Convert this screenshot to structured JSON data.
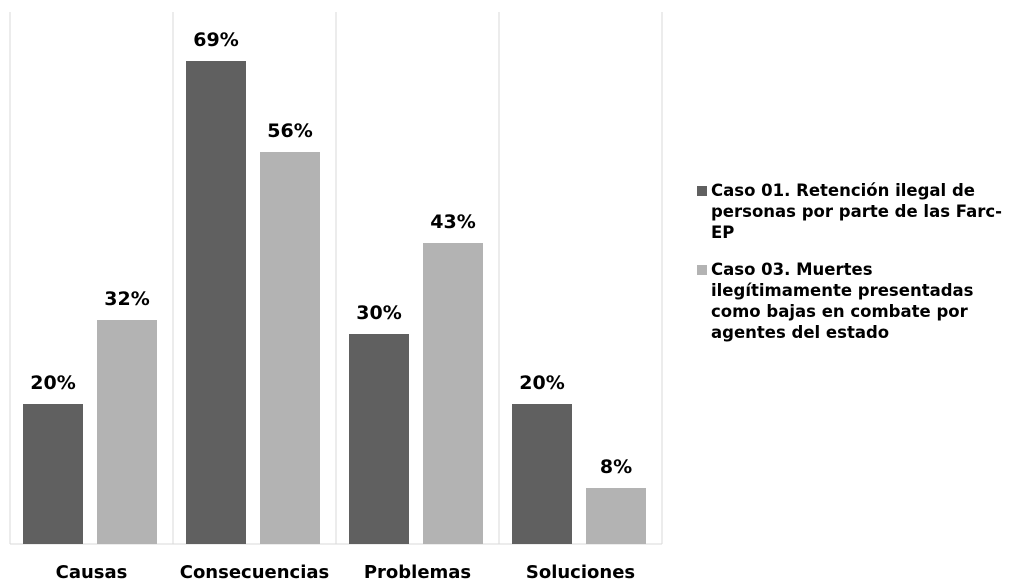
{
  "chart_data": {
    "type": "bar",
    "categories": [
      "Causas",
      "Consecuencias",
      "Problemas",
      "Soluciones"
    ],
    "series": [
      {
        "name": "Caso 01. Retención ilegal de personas por parte de las Farc-EP",
        "values": [
          20,
          69,
          30,
          20
        ],
        "labels": [
          "20%",
          "69%",
          "30%",
          "20%"
        ],
        "color": "#606060"
      },
      {
        "name": "Caso 03. Muertes ilegítimamente presentadas como bajas en combate por agentes del estado",
        "values": [
          32,
          56,
          43,
          8
        ],
        "labels": [
          "32%",
          "56%",
          "43%",
          "8%"
        ],
        "color": "#b3b3b3"
      }
    ],
    "ylim": [
      0,
      80
    ],
    "grid": false,
    "legend_position": "right"
  }
}
